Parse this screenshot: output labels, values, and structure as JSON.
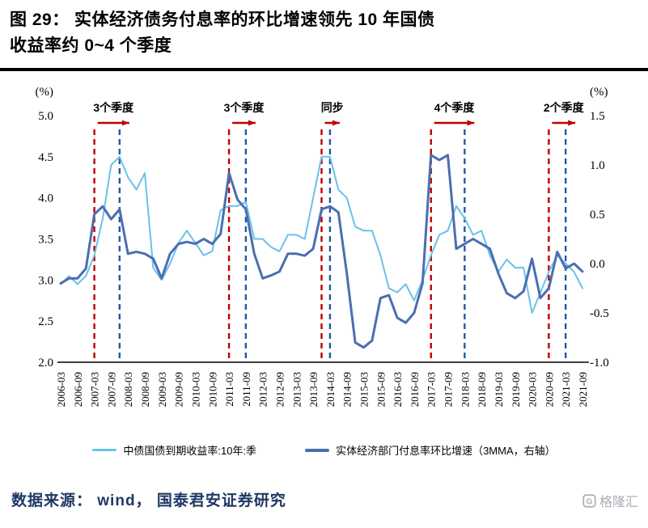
{
  "header": {
    "title_line1": "图 29：  实体经济债务付息率的环比增速领先 10 年国债",
    "title_line2": "收益率约 0~4 个季度"
  },
  "chart_data": {
    "type": "line",
    "title": "实体经济债务付息率的环比增速领先10年国债收益率约0~4个季度",
    "left_axis": {
      "unit": "(%)",
      "min": 2.0,
      "max": 5.0,
      "ticks": [
        "5.0",
        "4.5",
        "4.0",
        "3.5",
        "3.0",
        "2.5",
        "2.0"
      ]
    },
    "right_axis": {
      "unit": "(%)",
      "min": -1.0,
      "max": 1.5,
      "ticks": [
        "1.5",
        "1.0",
        "0.5",
        "0.0",
        "-0.5",
        "-1.0"
      ]
    },
    "x_tick_every": 2,
    "quarters": [
      "2006-03",
      "2006-06",
      "2006-09",
      "2006-12",
      "2007-03",
      "2007-06",
      "2007-09",
      "2007-12",
      "2008-03",
      "2008-06",
      "2008-09",
      "2008-12",
      "2009-03",
      "2009-06",
      "2009-09",
      "2009-12",
      "2010-03",
      "2010-06",
      "2010-09",
      "2010-12",
      "2011-03",
      "2011-06",
      "2011-09",
      "2011-12",
      "2012-03",
      "2012-06",
      "2012-09",
      "2012-12",
      "2013-03",
      "2013-06",
      "2013-09",
      "2013-12",
      "2014-03",
      "2014-06",
      "2014-09",
      "2014-12",
      "2015-03",
      "2015-06",
      "2015-09",
      "2015-12",
      "2016-03",
      "2016-06",
      "2016-09",
      "2016-12",
      "2017-03",
      "2017-06",
      "2017-09",
      "2017-12",
      "2018-03",
      "2018-06",
      "2018-09",
      "2018-12",
      "2019-03",
      "2019-06",
      "2019-09",
      "2019-12",
      "2020-03",
      "2020-06",
      "2020-09",
      "2020-12",
      "2021-03",
      "2021-06",
      "2021-09"
    ],
    "series": [
      {
        "name": "中债国债到期收益率:10年:季",
        "axis": "left",
        "color": "#68C2E8",
        "width": 2,
        "values": [
          2.95,
          3.05,
          2.95,
          3.05,
          3.3,
          3.75,
          4.4,
          4.5,
          4.25,
          4.1,
          4.3,
          3.15,
          3.0,
          3.2,
          3.45,
          3.6,
          3.45,
          3.3,
          3.35,
          3.85,
          3.9,
          3.9,
          3.95,
          3.5,
          3.5,
          3.4,
          3.35,
          3.55,
          3.55,
          3.5,
          4.0,
          4.5,
          4.5,
          4.1,
          4.0,
          3.65,
          3.6,
          3.6,
          3.3,
          2.9,
          2.85,
          2.95,
          2.75,
          3.0,
          3.3,
          3.55,
          3.6,
          3.9,
          3.75,
          3.55,
          3.6,
          3.3,
          3.1,
          3.25,
          3.15,
          3.15,
          2.6,
          2.85,
          3.1,
          3.3,
          3.2,
          3.1,
          2.9
        ]
      },
      {
        "name": "实体经济部门付息率环比增速（3MMA，右轴）",
        "axis": "right",
        "color": "#4A6FB0",
        "width": 3,
        "values": [
          -0.2,
          -0.15,
          -0.15,
          -0.05,
          0.5,
          0.58,
          0.45,
          0.55,
          0.1,
          0.12,
          0.1,
          0.05,
          -0.15,
          0.1,
          0.2,
          0.22,
          0.2,
          0.25,
          0.2,
          0.3,
          0.92,
          0.65,
          0.55,
          0.1,
          -0.15,
          -0.12,
          -0.08,
          0.1,
          0.1,
          0.08,
          0.15,
          0.55,
          0.58,
          0.52,
          -0.1,
          -0.8,
          -0.85,
          -0.78,
          -0.35,
          -0.32,
          -0.55,
          -0.6,
          -0.5,
          -0.2,
          1.1,
          1.05,
          1.1,
          0.15,
          0.2,
          0.25,
          0.2,
          0.15,
          -0.1,
          -0.3,
          -0.35,
          -0.28,
          0.05,
          -0.35,
          -0.25,
          0.12,
          -0.05,
          0.0,
          -0.08
        ]
      }
    ],
    "event_lines": [
      {
        "color": "red",
        "quarter": "2007-03"
      },
      {
        "color": "blue",
        "quarter": "2007-12"
      },
      {
        "color": "red",
        "quarter": "2011-03"
      },
      {
        "color": "blue",
        "quarter": "2011-09"
      },
      {
        "color": "red",
        "quarter": "2013-12"
      },
      {
        "color": "blue",
        "quarter": "2014-03"
      },
      {
        "color": "red",
        "quarter": "2017-03"
      },
      {
        "color": "blue",
        "quarter": "2018-03"
      },
      {
        "color": "red",
        "quarter": "2020-09"
      },
      {
        "color": "blue",
        "quarter": "2021-03"
      }
    ],
    "annotations": [
      {
        "text": "3个季度",
        "from": "2007-03",
        "to": "2007-12"
      },
      {
        "text": "3个季度",
        "from": "2011-03",
        "to": "2011-09"
      },
      {
        "text": "同步",
        "from": "2013-12",
        "to": "2014-03"
      },
      {
        "text": "4个季度",
        "from": "2017-03",
        "to": "2018-03"
      },
      {
        "text": "2个季度",
        "from": "2020-09",
        "to": "2021-03"
      }
    ],
    "colors": {
      "red_dash": "#C00000",
      "blue_dash": "#2359A5",
      "arrow": "#C00000",
      "axis": "#000000"
    },
    "legend_position": "bottom",
    "grid": false
  },
  "footer": {
    "source": "数据来源：  wind，  国泰君安证券研究"
  },
  "watermark": {
    "text": "格隆汇",
    "logo_letter": "G"
  }
}
